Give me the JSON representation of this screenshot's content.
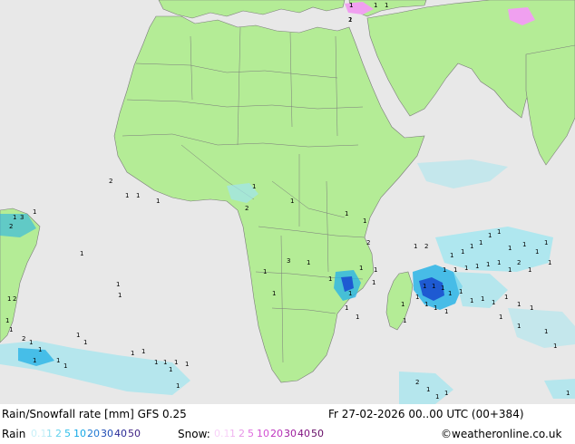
{
  "map": {
    "title": "Rain/Snowfall rate [mm] GFS 0.25",
    "datetime": "Fr 27-02-2026 00..00 UTC (00+384)",
    "credit": "©weatheronline.co.uk",
    "colors": {
      "ocean": "#e8e8e8",
      "land": "#b4ec96",
      "border": "#7a7a7a",
      "rain_light": "#a0e6f0",
      "rain_mid": "#2ab4e6",
      "rain_heavy": "#1e5ad2",
      "snow": "#f0a0f0"
    }
  },
  "legend": {
    "rain_label": "Rain",
    "rain_levels": [
      {
        "text": "0.1",
        "color": "#c8f0f8"
      },
      {
        "text": "1",
        "color": "#96e0f0"
      },
      {
        "text": "2",
        "color": "#64d2ee"
      },
      {
        "text": "5",
        "color": "#32c0ea"
      },
      {
        "text": "10",
        "color": "#14a8e6"
      },
      {
        "text": "20",
        "color": "#1e78d2"
      },
      {
        "text": "30",
        "color": "#1e4ab4"
      },
      {
        "text": "40",
        "color": "#2a2a96"
      },
      {
        "text": "50",
        "color": "#3c1e82"
      }
    ],
    "snow_label": "Snow:",
    "snow_levels": [
      {
        "text": "0.1",
        "color": "#f8d2f8"
      },
      {
        "text": "1",
        "color": "#f0b4f0"
      },
      {
        "text": "2",
        "color": "#e896e8"
      },
      {
        "text": "5",
        "color": "#e070e0"
      },
      {
        "text": "10",
        "color": "#d250d2"
      },
      {
        "text": "20",
        "color": "#be32be"
      },
      {
        "text": "30",
        "color": "#a01ea0"
      },
      {
        "text": "40",
        "color": "#821482"
      },
      {
        "text": "50",
        "color": "#640a64"
      }
    ]
  },
  "precip_labels": [
    "1",
    "2",
    "1",
    "1",
    "2",
    "3",
    "1",
    "1",
    "2",
    "1",
    "1",
    "1",
    "1",
    "1",
    "2",
    "1",
    "1",
    "1",
    "2",
    "1",
    "1",
    "3",
    "1",
    "1",
    "1",
    "1",
    "1",
    "1",
    "1",
    "1",
    "1",
    "2",
    "1",
    "1",
    "1",
    "1",
    "1",
    "1",
    "1",
    "1",
    "1",
    "1",
    "1",
    "1",
    "1",
    "1",
    "1",
    "1",
    "1",
    "1",
    "2",
    "1",
    "1",
    "1",
    "1",
    "1",
    "1",
    "1",
    "1",
    "1",
    "1",
    "1",
    "1",
    "1",
    "1",
    "1",
    "1",
    "1",
    "1",
    "1",
    "1",
    "1",
    "1",
    "1",
    "1",
    "1",
    "1",
    "1",
    "1",
    "1",
    "1",
    "1",
    "1",
    "1",
    "1",
    "1",
    "1",
    "2",
    "1",
    "1",
    "1",
    "1",
    "1",
    "1",
    "1",
    "1",
    "1",
    "2",
    "2",
    "1",
    "1",
    "1"
  ]
}
